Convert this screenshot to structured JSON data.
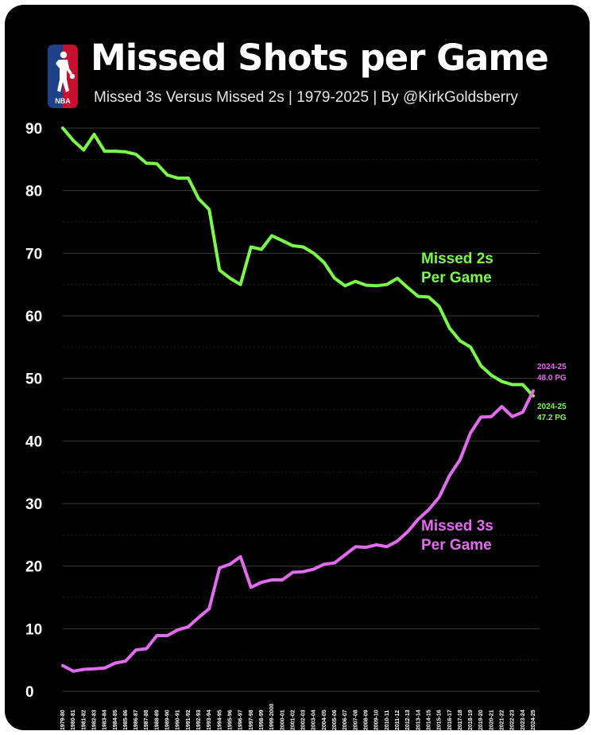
{
  "header": {
    "logo_text": "NBA",
    "title": "Missed Shots per Game",
    "subtitle": "Missed 3s Versus Missed 2s | 1979-2025 | By @KirkGoldsberry"
  },
  "colors": {
    "background": "#000000",
    "missed_2s": "#7CFC4A",
    "missed_3s": "#E36BF0",
    "grid": "#3a3a3a",
    "logo_blue": "#1d428a",
    "logo_red": "#c8102e"
  },
  "chart_data": {
    "type": "line",
    "title": "Missed Shots per Game",
    "xlabel": "",
    "ylabel": "",
    "ylim": [
      0,
      90
    ],
    "yticks": [
      0,
      10,
      20,
      30,
      40,
      50,
      60,
      70,
      80,
      90
    ],
    "grid": true,
    "categories": [
      "1979-80",
      "1980-81",
      "1981-82",
      "1982-83",
      "1983-84",
      "1984-85",
      "1985-86",
      "1986-87",
      "1987-88",
      "1988-89",
      "1989-90",
      "1990-91",
      "1991-92",
      "1992-93",
      "1993-94",
      "1994-95",
      "1995-96",
      "1996-97",
      "1997-98",
      "1998-99",
      "1999-2000",
      "2000-01",
      "2001-02",
      "2002-03",
      "2003-04",
      "2004-05",
      "2005-06",
      "2006-07",
      "2007-08",
      "2008-09",
      "2009-10",
      "2010-11",
      "2011-12",
      "2012-13",
      "2013-14",
      "2014-15",
      "2015-16",
      "2016-17",
      "2017-18",
      "2018-19",
      "2019-20",
      "2020-21",
      "2021-22",
      "2022-23",
      "2023-24",
      "2024-25"
    ],
    "series": [
      {
        "name": "Missed 2s Per Game",
        "label_lines": [
          "Missed 2s",
          "Per Game"
        ],
        "color": "#7CFC4A",
        "values": [
          90.0,
          88.0,
          86.5,
          89.0,
          86.3,
          86.3,
          86.2,
          85.8,
          84.4,
          84.3,
          82.5,
          82.0,
          82.0,
          78.7,
          77.0,
          67.3,
          66.0,
          65.0,
          71.0,
          70.6,
          72.8,
          72.0,
          71.2,
          71.0,
          70.0,
          68.5,
          66.0,
          64.8,
          65.5,
          64.9,
          64.8,
          65.0,
          66.0,
          64.5,
          63.1,
          63.0,
          61.5,
          58.0,
          56.0,
          55.0,
          52.0,
          50.5,
          49.5,
          49.0,
          49.0,
          47.2
        ]
      },
      {
        "name": "Missed 3s Per Game",
        "label_lines": [
          "Missed 3s",
          "Per Game"
        ],
        "color": "#E36BF0",
        "values": [
          4.1,
          3.2,
          3.5,
          3.6,
          3.7,
          4.5,
          4.8,
          6.6,
          6.8,
          8.9,
          8.9,
          9.8,
          10.3,
          11.8,
          13.2,
          19.7,
          20.3,
          21.5,
          16.6,
          17.4,
          17.8,
          17.8,
          19.0,
          19.1,
          19.5,
          20.3,
          20.5,
          21.8,
          23.1,
          23.0,
          23.4,
          23.1,
          24.0,
          25.5,
          27.5,
          29.0,
          31.0,
          34.5,
          37.0,
          41.3,
          43.8,
          43.9,
          45.5,
          43.9,
          44.6,
          48.0
        ]
      }
    ],
    "end_annotations": [
      {
        "lines": [
          "2024-25",
          "48.0 PG"
        ],
        "color": "#E36BF0"
      },
      {
        "lines": [
          "2024-25",
          "47.2 PG"
        ],
        "color": "#7CFC4A"
      }
    ]
  }
}
